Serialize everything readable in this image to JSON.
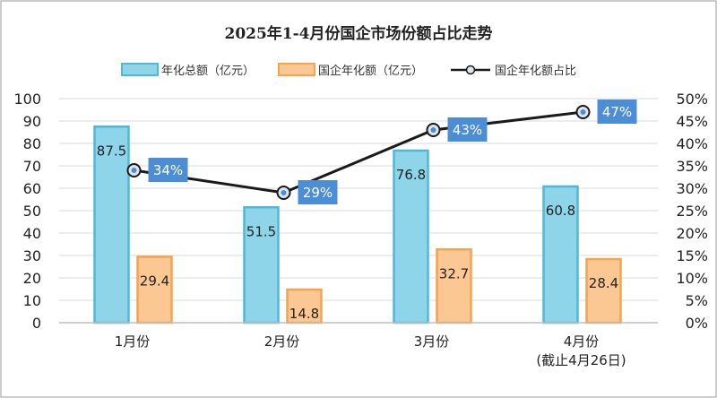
{
  "chart_data": {
    "type": "bar",
    "title": "2025年1-4月份国企市场份额占比走势",
    "categories": [
      "1月份",
      "2月份",
      "3月份",
      "4月份"
    ],
    "category_notes": [
      "",
      "",
      "",
      "(截止4月26日)"
    ],
    "series": [
      {
        "name": "年化总额（亿元）",
        "type": "bar",
        "axis": "left",
        "values": [
          87.5,
          51.5,
          76.8,
          60.8
        ],
        "labels": [
          "87.5",
          "51.5",
          "76.8",
          "60.8"
        ]
      },
      {
        "name": "国企年化额（亿元）",
        "type": "bar",
        "axis": "left",
        "values": [
          29.4,
          14.8,
          32.7,
          28.4
        ],
        "labels": [
          "29.4",
          "14.8",
          "32.7",
          "28.4"
        ]
      },
      {
        "name": "国企年化额占比",
        "type": "line",
        "axis": "right",
        "values": [
          34,
          29,
          43,
          47
        ],
        "labels": [
          "34%",
          "29%",
          "43%",
          "47%"
        ]
      }
    ],
    "ylim": [
      0,
      100
    ],
    "y_ticks": [
      0,
      10,
      20,
      30,
      40,
      50,
      60,
      70,
      80,
      90,
      100
    ],
    "y_tick_labels": [
      "0",
      "10",
      "20",
      "30",
      "40",
      "50",
      "60",
      "70",
      "80",
      "90",
      "100"
    ],
    "y2lim": [
      0,
      50
    ],
    "y2_ticks": [
      0,
      5,
      10,
      15,
      20,
      25,
      30,
      35,
      40,
      45,
      50
    ],
    "y2_tick_labels": [
      "0%",
      "5%",
      "10%",
      "15%",
      "20%",
      "25%",
      "30%",
      "35%",
      "40%",
      "45%",
      "50%"
    ],
    "xlabel": "",
    "ylabel": "",
    "grid": true,
    "legend": "top"
  },
  "colors": {
    "total_fill": "#8ed5ea",
    "total_stroke": "#4fb8d6",
    "soe_fill": "#fbc792",
    "soe_stroke": "#f3a451",
    "line": "#1a1a1a",
    "label_bg": "#4c8ed6",
    "grid": "#d9d9d9",
    "axis": "#bfbfbf",
    "frame": "#bbbbbb"
  }
}
